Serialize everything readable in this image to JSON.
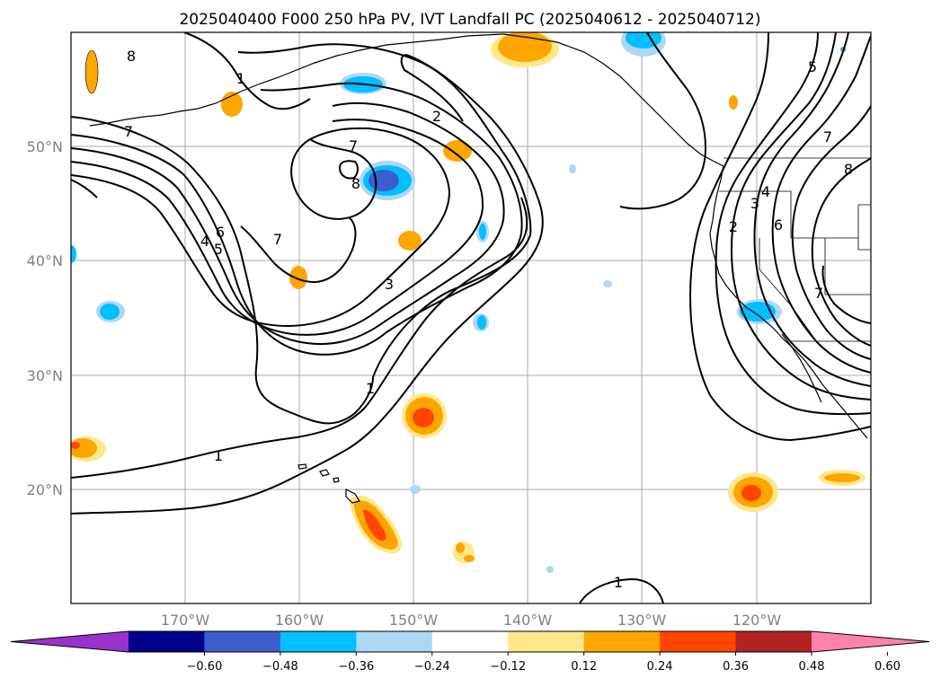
{
  "title": "2025040400 F000 250 hPa PV, IVT Landfall PC (2025040612 - 2025040712)",
  "lat_labels": [
    "50°N",
    "40°N",
    "30°N",
    "20°N"
  ],
  "lon_labels": [
    "170°W",
    "160°W",
    "150°W",
    "140°W",
    "130°W",
    "120°W"
  ],
  "colorbar": {
    "ticks": [
      "−0.60",
      "−0.48",
      "−0.36",
      "−0.24",
      "−0.12",
      "0.12",
      "0.24",
      "0.36",
      "0.48",
      "0.60"
    ],
    "colors": [
      "#9932cc",
      "#00008b",
      "#3a5fcd",
      "#00bfff",
      "#add8f5",
      "#ffffff",
      "#ffe88a",
      "#ffa500",
      "#ff4500",
      "#b22222",
      "#ff82ab"
    ]
  },
  "map_data": {
    "projection": "equirectangular",
    "lon_range": [
      -180,
      -110
    ],
    "lat_range": [
      10,
      60
    ],
    "pv_contour_labels": [
      "8",
      "1",
      "7",
      "2",
      "7",
      "8",
      "7",
      "6",
      "4",
      "5",
      "3",
      "1",
      "1",
      "1",
      "5",
      "7",
      "3",
      "4",
      "2",
      "6",
      "7",
      "8"
    ]
  }
}
